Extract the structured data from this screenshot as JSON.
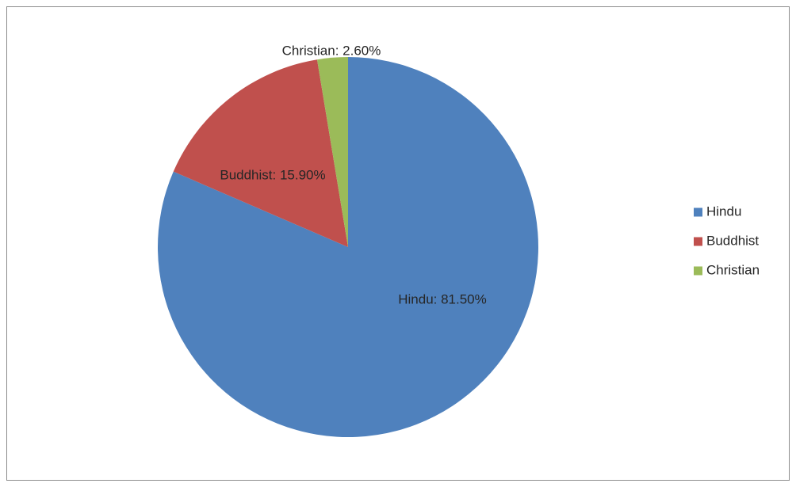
{
  "chart_data": {
    "type": "pie",
    "title": "",
    "categories": [
      "Hindu",
      "Buddhist",
      "Christian"
    ],
    "values": [
      81.5,
      15.9,
      2.6
    ],
    "unit": "%",
    "data_labels": [
      "Hindu: 81.50%",
      "Buddhist: 15.90%",
      "Christian: 2.60%"
    ],
    "colors": [
      "#4f81bd",
      "#c0504d",
      "#9bbb59"
    ],
    "start_angle": "12 o'clock",
    "direction": "clockwise",
    "legend": {
      "position": "right",
      "entries": [
        "Hindu",
        "Buddhist",
        "Christian"
      ]
    }
  }
}
